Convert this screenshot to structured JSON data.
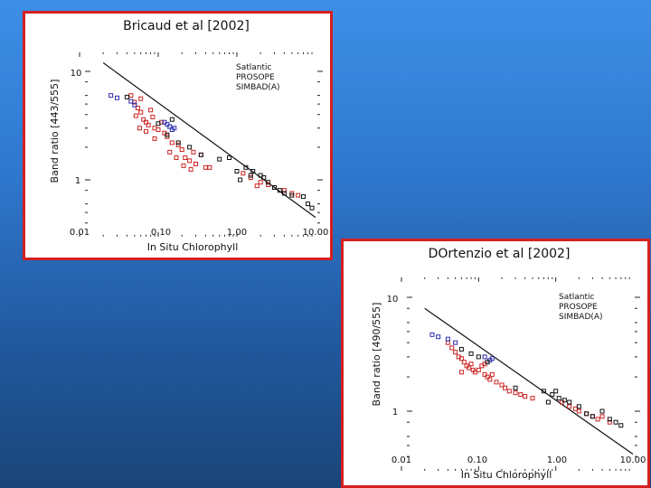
{
  "colors": {
    "background_top": "#3d8fe6",
    "background_bottom": "#1a4579",
    "panel_border": "#d42020",
    "satlantic": "#cc2222",
    "prosope": "#2b2bb0",
    "simbad": "#111111",
    "fit_line": "#111111"
  },
  "chart_data": [
    {
      "type": "scatter",
      "title": "Bricaud et al [2002]",
      "xlabel": "In Situ Chlorophyll",
      "ylabel": "Band ratio [443/555]",
      "x_scale": "log",
      "y_scale": "log",
      "xlim": [
        0.01,
        10
      ],
      "ylim": [
        0.3,
        15
      ],
      "x_tick_labels": [
        "0.01",
        "0.10",
        "1.00",
        "10.00"
      ],
      "y_tick_labels": [
        "10",
        "1"
      ],
      "legend_position": "top-right",
      "series": [
        {
          "name": "Satlantic",
          "color": "#cc2222",
          "points": [
            [
              0.045,
              6.0
            ],
            [
              0.05,
              5.2
            ],
            [
              0.055,
              4.6
            ],
            [
              0.06,
              4.2
            ],
            [
              0.052,
              3.9
            ],
            [
              0.065,
              3.6
            ],
            [
              0.07,
              3.4
            ],
            [
              0.075,
              3.2
            ],
            [
              0.058,
              3.0
            ],
            [
              0.08,
              4.4
            ],
            [
              0.085,
              3.8
            ],
            [
              0.09,
              3.0
            ],
            [
              0.1,
              2.9
            ],
            [
              0.11,
              3.4
            ],
            [
              0.12,
              2.7
            ],
            [
              0.13,
              2.5
            ],
            [
              0.07,
              2.8
            ],
            [
              0.09,
              2.4
            ],
            [
              0.15,
              2.2
            ],
            [
              0.18,
              2.1
            ],
            [
              0.2,
              1.9
            ],
            [
              0.22,
              1.6
            ],
            [
              0.25,
              1.5
            ],
            [
              0.28,
              1.8
            ],
            [
              0.3,
              1.4
            ],
            [
              0.35,
              1.7
            ],
            [
              0.4,
              1.3
            ],
            [
              0.45,
              1.3
            ],
            [
              0.14,
              1.8
            ],
            [
              0.17,
              1.6
            ],
            [
              0.21,
              1.35
            ],
            [
              0.26,
              1.25
            ],
            [
              1.2,
              1.15
            ],
            [
              1.5,
              1.05
            ],
            [
              2.0,
              0.95
            ],
            [
              2.5,
              0.9
            ],
            [
              3.0,
              0.85
            ],
            [
              4.0,
              0.8
            ],
            [
              5.0,
              0.75
            ],
            [
              6.0,
              0.72
            ],
            [
              1.8,
              0.88
            ],
            [
              0.06,
              5.6
            ]
          ]
        },
        {
          "name": "PROSOPE",
          "color": "#2b2bb0",
          "points": [
            [
              0.025,
              6.0
            ],
            [
              0.03,
              5.7
            ],
            [
              0.045,
              5.3
            ],
            [
              0.05,
              4.9
            ],
            [
              0.12,
              3.4
            ],
            [
              0.14,
              3.1
            ],
            [
              0.15,
              2.9
            ],
            [
              0.16,
              3.0
            ],
            [
              0.13,
              3.25
            ]
          ]
        },
        {
          "name": "SIMBAD(A)",
          "color": "#111111",
          "points": [
            [
              0.04,
              5.8
            ],
            [
              0.1,
              3.3
            ],
            [
              0.15,
              3.6
            ],
            [
              0.13,
              2.6
            ],
            [
              0.18,
              2.2
            ],
            [
              0.25,
              2.0
            ],
            [
              0.35,
              1.7
            ],
            [
              0.6,
              1.55
            ],
            [
              0.8,
              1.6
            ],
            [
              1.0,
              1.2
            ],
            [
              1.3,
              1.3
            ],
            [
              1.5,
              1.1
            ],
            [
              1.6,
              1.2
            ],
            [
              2.0,
              1.1
            ],
            [
              2.5,
              0.95
            ],
            [
              3.0,
              0.85
            ],
            [
              3.5,
              0.8
            ],
            [
              4.0,
              0.75
            ],
            [
              5.0,
              0.72
            ],
            [
              7.0,
              0.7
            ],
            [
              8.0,
              0.6
            ],
            [
              9.0,
              0.55
            ],
            [
              1.1,
              1.0
            ],
            [
              2.2,
              1.05
            ]
          ]
        }
      ],
      "fit_line": {
        "x": [
          0.02,
          10
        ],
        "y": [
          12.0,
          0.45
        ]
      },
      "legend_entries": [
        "Satlantic",
        "PROSOPE",
        "SIMBAD(A)"
      ]
    },
    {
      "type": "scatter",
      "title": "DOrtenzio et al [2002]",
      "xlabel": "In Situ Chlorophyll",
      "ylabel": "Band ratio [490/555]",
      "x_scale": "log",
      "y_scale": "log",
      "xlim": [
        0.01,
        10
      ],
      "ylim": [
        0.3,
        15
      ],
      "x_tick_labels": [
        "0.01",
        "0.10",
        "1.00",
        "10.00"
      ],
      "y_tick_labels": [
        "10",
        "1"
      ],
      "legend_position": "top-right",
      "series": [
        {
          "name": "Satlantic",
          "color": "#cc2222",
          "points": [
            [
              0.04,
              4.0
            ],
            [
              0.045,
              3.6
            ],
            [
              0.05,
              3.3
            ],
            [
              0.055,
              3.0
            ],
            [
              0.06,
              2.9
            ],
            [
              0.065,
              2.7
            ],
            [
              0.07,
              2.5
            ],
            [
              0.075,
              2.4
            ],
            [
              0.08,
              2.6
            ],
            [
              0.085,
              2.3
            ],
            [
              0.09,
              2.2
            ],
            [
              0.1,
              2.3
            ],
            [
              0.11,
              2.5
            ],
            [
              0.12,
              2.1
            ],
            [
              0.13,
              2.0
            ],
            [
              0.14,
              1.9
            ],
            [
              0.15,
              2.1
            ],
            [
              0.17,
              1.8
            ],
            [
              0.2,
              1.7
            ],
            [
              0.22,
              1.6
            ],
            [
              0.25,
              1.5
            ],
            [
              0.3,
              1.45
            ],
            [
              0.35,
              1.4
            ],
            [
              0.4,
              1.35
            ],
            [
              0.5,
              1.3
            ],
            [
              1.2,
              1.2
            ],
            [
              1.5,
              1.1
            ],
            [
              1.8,
              1.05
            ],
            [
              2.0,
              1.0
            ],
            [
              2.5,
              0.95
            ],
            [
              3.0,
              0.9
            ],
            [
              3.5,
              0.85
            ],
            [
              4.0,
              0.9
            ],
            [
              5.0,
              0.8
            ],
            [
              0.06,
              2.2
            ],
            [
              0.12,
              2.6
            ]
          ]
        },
        {
          "name": "PROSOPE",
          "color": "#2b2bb0",
          "points": [
            [
              0.025,
              4.7
            ],
            [
              0.03,
              4.5
            ],
            [
              0.04,
              4.3
            ],
            [
              0.05,
              4.0
            ],
            [
              0.12,
              3.0
            ],
            [
              0.14,
              2.8
            ],
            [
              0.15,
              2.9
            ]
          ]
        },
        {
          "name": "SIMBAD(A)",
          "color": "#111111",
          "points": [
            [
              0.06,
              3.5
            ],
            [
              0.08,
              3.2
            ],
            [
              0.1,
              3.0
            ],
            [
              0.13,
              2.7
            ],
            [
              0.3,
              1.6
            ],
            [
              0.7,
              1.5
            ],
            [
              0.9,
              1.4
            ],
            [
              1.0,
              1.5
            ],
            [
              1.1,
              1.3
            ],
            [
              1.3,
              1.25
            ],
            [
              1.5,
              1.2
            ],
            [
              2.0,
              1.1
            ],
            [
              2.5,
              0.95
            ],
            [
              3.0,
              0.9
            ],
            [
              4.0,
              1.0
            ],
            [
              5.0,
              0.85
            ],
            [
              6.0,
              0.8
            ],
            [
              7.0,
              0.75
            ],
            [
              0.8,
              1.2
            ]
          ]
        }
      ],
      "fit_line": {
        "x": [
          0.02,
          10
        ],
        "y": [
          8.0,
          0.42
        ]
      },
      "legend_entries": [
        "Satlantic",
        "PROSOPE",
        "SIMBAD(A)"
      ]
    }
  ]
}
